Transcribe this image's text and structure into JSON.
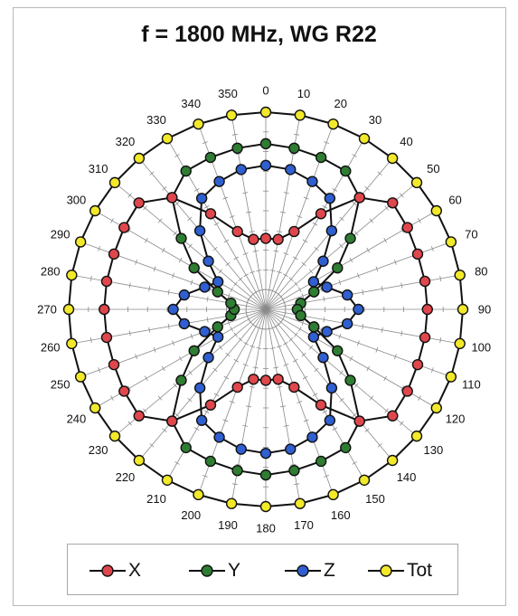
{
  "chart_data": {
    "type": "polar-line",
    "title": "f = 1800 MHz, WG R22",
    "angle_unit": "degrees",
    "angle_direction": "clockwise",
    "zero_at": "top",
    "angles": [
      0,
      10,
      20,
      30,
      40,
      50,
      60,
      70,
      80,
      90,
      100,
      110,
      120,
      130,
      140,
      150,
      160,
      170,
      180,
      190,
      200,
      210,
      220,
      230,
      240,
      250,
      260,
      270,
      280,
      290,
      300,
      310,
      320,
      330,
      340,
      350
    ],
    "angle_tick_labels": [
      "0",
      "10",
      "20",
      "30",
      "40",
      "50",
      "60",
      "70",
      "80",
      "90",
      "100",
      "110",
      "120",
      "130",
      "140",
      "150",
      "160",
      "170",
      "180",
      "190",
      "200",
      "210",
      "220",
      "230",
      "240",
      "250",
      "260",
      "270",
      "280",
      "290",
      "300",
      "310",
      "320",
      "330",
      "340",
      "350"
    ],
    "r_range": [
      0,
      1
    ],
    "grid": true,
    "legend_position": "bottom",
    "series": [
      {
        "name": "X",
        "color": "#e0474c",
        "values": [
          0.36,
          0.36,
          0.42,
          0.56,
          0.74,
          0.84,
          0.83,
          0.82,
          0.82,
          0.82,
          0.82,
          0.82,
          0.83,
          0.84,
          0.74,
          0.56,
          0.42,
          0.36,
          0.36,
          0.36,
          0.42,
          0.56,
          0.74,
          0.84,
          0.83,
          0.82,
          0.82,
          0.82,
          0.82,
          0.82,
          0.83,
          0.84,
          0.74,
          0.56,
          0.42,
          0.36
        ]
      },
      {
        "name": "Y",
        "color": "#2e7d32",
        "values": [
          0.84,
          0.83,
          0.82,
          0.81,
          0.74,
          0.56,
          0.42,
          0.26,
          0.18,
          0.16,
          0.18,
          0.26,
          0.42,
          0.56,
          0.74,
          0.81,
          0.82,
          0.83,
          0.84,
          0.83,
          0.82,
          0.81,
          0.74,
          0.56,
          0.42,
          0.26,
          0.18,
          0.16,
          0.18,
          0.26,
          0.42,
          0.56,
          0.74,
          0.81,
          0.82,
          0.83
        ]
      },
      {
        "name": "Z",
        "color": "#2f5fd0",
        "values": [
          0.73,
          0.72,
          0.69,
          0.65,
          0.52,
          0.38,
          0.28,
          0.33,
          0.42,
          0.47,
          0.42,
          0.33,
          0.28,
          0.38,
          0.52,
          0.65,
          0.69,
          0.72,
          0.73,
          0.72,
          0.69,
          0.65,
          0.52,
          0.38,
          0.28,
          0.33,
          0.42,
          0.47,
          0.42,
          0.33,
          0.28,
          0.38,
          0.52,
          0.65,
          0.69,
          0.72
        ]
      },
      {
        "name": "Tot",
        "color": "#f2e92a",
        "values": [
          1,
          1,
          1,
          1,
          1,
          1,
          1,
          1,
          1,
          1,
          1,
          1,
          1,
          1,
          1,
          1,
          1,
          1,
          1,
          1,
          1,
          1,
          1,
          1,
          1,
          1,
          1,
          1,
          1,
          1,
          1,
          1,
          1,
          1,
          1,
          1
        ]
      }
    ],
    "legend": [
      "X",
      "Y",
      "Z",
      "Tot"
    ]
  }
}
